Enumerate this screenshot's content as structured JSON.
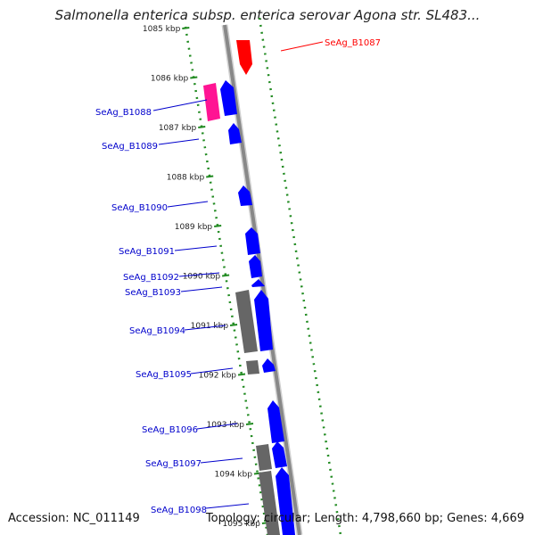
{
  "title": "Salmonella enterica subsp. enterica serovar Agona str. SL483...",
  "footer": {
    "accession": "Accession: NC_011149",
    "topology": "Topology: circular; Length: 4,798,660 bp; Genes: 4,669"
  },
  "ticks": [
    "1085 kbp",
    "1086 kbp",
    "1087 kbp",
    "1088 kbp",
    "1089 kbp",
    "1090 kbp",
    "1091 kbp",
    "1092 kbp",
    "1093 kbp",
    "1094 kbp",
    "1095 kbp"
  ],
  "gene_labels": [
    {
      "text": "SeAg_B1087",
      "color": "#ff0000"
    },
    {
      "text": "SeAg_B1088",
      "color": "#0000cc"
    },
    {
      "text": "SeAg_B1089",
      "color": "#0000cc"
    },
    {
      "text": "SeAg_B1090",
      "color": "#0000cc"
    },
    {
      "text": "SeAg_B1091",
      "color": "#0000cc"
    },
    {
      "text": "SeAg_B1092",
      "color": "#0000cc"
    },
    {
      "text": "SeAg_B1093",
      "color": "#0000cc"
    },
    {
      "text": "SeAg_B1094",
      "color": "#0000cc"
    },
    {
      "text": "SeAg_B1095",
      "color": "#0000cc"
    },
    {
      "text": "SeAg_B1096",
      "color": "#0000cc"
    },
    {
      "text": "SeAg_B1097",
      "color": "#0000cc"
    },
    {
      "text": "SeAg_B1098",
      "color": "#0000cc"
    }
  ],
  "colors": {
    "forward_cds": "#0000ff",
    "reverse_cds": "#ff0000",
    "other_feature": "#ff1493",
    "gray_feature": "#666666",
    "backbone": "#888888",
    "gc_dots": "#228b22"
  }
}
